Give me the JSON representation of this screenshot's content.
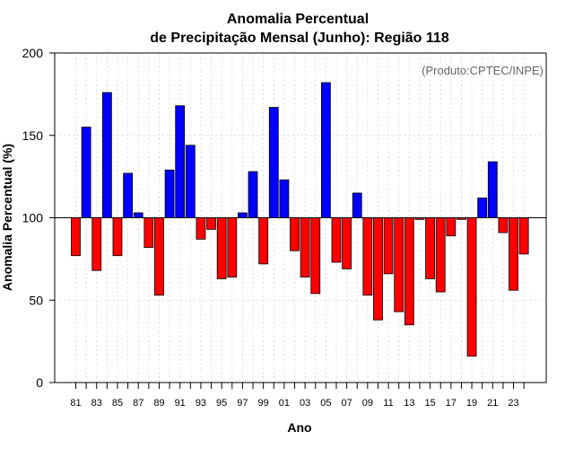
{
  "chart_data": {
    "type": "bar",
    "title": "Anomalia Percentual",
    "subtitle": "de Precipitação Mensal (Junho): Região 118",
    "xlabel": "Ano",
    "ylabel": "Anomalia Percentual (%)",
    "annotation": "(Produto:CPTEC/INPE)",
    "ylim": [
      0,
      200
    ],
    "yticks": [
      0,
      50,
      100,
      150,
      200
    ],
    "baseline": 100,
    "grid": true,
    "years": [
      1981,
      1982,
      1983,
      1984,
      1985,
      1986,
      1987,
      1988,
      1989,
      1990,
      1991,
      1992,
      1993,
      1994,
      1995,
      1996,
      1997,
      1998,
      1999,
      2000,
      2001,
      2002,
      2003,
      2004,
      2005,
      2006,
      2007,
      2008,
      2009,
      2010,
      2011,
      2012,
      2013,
      2014,
      2015,
      2016,
      2017,
      2018,
      2019,
      2020,
      2021,
      2022,
      2023,
      2024
    ],
    "x_tick_labels": [
      "81",
      "83",
      "85",
      "87",
      "89",
      "91",
      "93",
      "95",
      "97",
      "99",
      "01",
      "03",
      "05",
      "07",
      "09",
      "11",
      "13",
      "15",
      "17",
      "19",
      "21",
      "23"
    ],
    "values": [
      77,
      155,
      68,
      176,
      77,
      127,
      103,
      82,
      53,
      129,
      168,
      144,
      87,
      93,
      63,
      64,
      103,
      128,
      72,
      167,
      123,
      80,
      64,
      54,
      182,
      73,
      69,
      115,
      53,
      38,
      66,
      43,
      35,
      99,
      63,
      55,
      89,
      99,
      16,
      112,
      134,
      91,
      56,
      78
    ],
    "colors": {
      "above": "#0000ff",
      "below": "#ff0000",
      "axis": "#000000",
      "grid": "#d3d3d3"
    }
  }
}
